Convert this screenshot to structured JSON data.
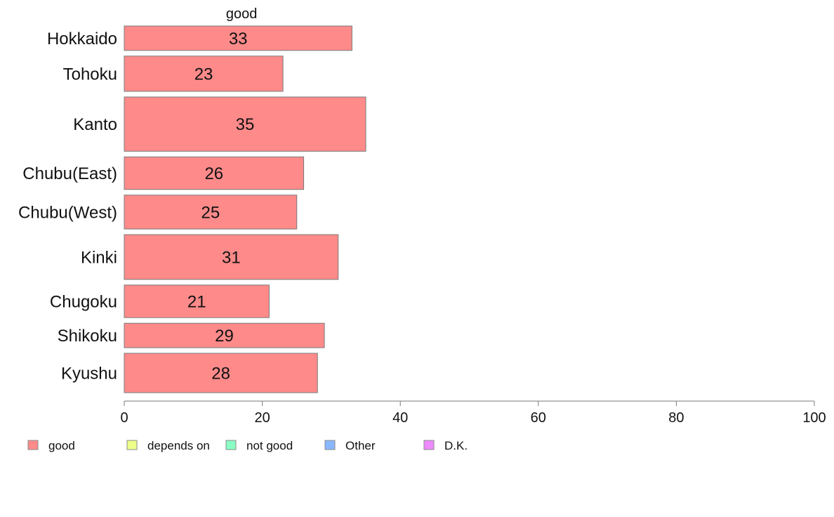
{
  "chart_data": {
    "type": "bar",
    "orientation": "horizontal",
    "stacked": true,
    "categories": [
      "Hokkaido",
      "Tohoku",
      "Kanto",
      "Chubu(East)",
      "Chubu(West)",
      "Kinki",
      "Chugoku",
      "Shikoku",
      "Kyushu"
    ],
    "category_weights": [
      36,
      52,
      80,
      48,
      50,
      66,
      48,
      36,
      58
    ],
    "series": [
      {
        "name": "good",
        "color": "#ff8a8a",
        "values": [
          33,
          23,
          35,
          26,
          25,
          31,
          21,
          29,
          28
        ]
      }
    ],
    "series_header": "good",
    "legend": [
      {
        "label": "good",
        "color": "#ff8a8a"
      },
      {
        "label": "depends on",
        "color": "#eeff8a"
      },
      {
        "label": "not good",
        "color": "#8affc4"
      },
      {
        "label": "Other",
        "color": "#8ab8ff"
      },
      {
        "label": "D.K.",
        "color": "#ee8aff"
      }
    ],
    "legend_position": "bottom-left",
    "xlim": [
      0,
      100
    ],
    "xticks": [
      0,
      20,
      40,
      60,
      80,
      100
    ],
    "grid": false
  }
}
